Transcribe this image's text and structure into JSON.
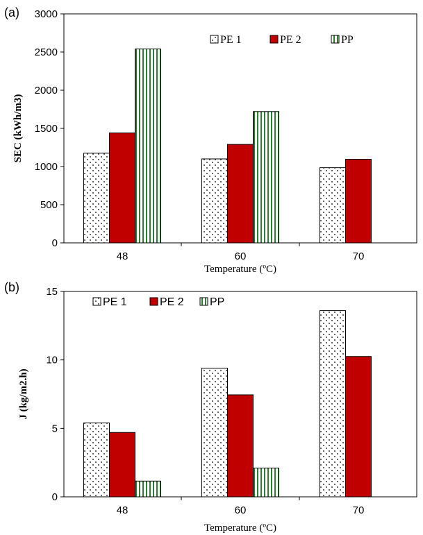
{
  "chart_data": [
    {
      "panel_label": "(a)",
      "type": "bar",
      "categories": [
        "48",
        "60",
        "70"
      ],
      "series": [
        {
          "name": "PE 1",
          "values": [
            1175,
            1100,
            985
          ],
          "fill": "#ffffff",
          "pattern": "dots"
        },
        {
          "name": "PE 2",
          "values": [
            1440,
            1290,
            1095
          ],
          "fill": "#c00000",
          "pattern": "solid"
        },
        {
          "name": "PP",
          "values": [
            2540,
            1720,
            null
          ],
          "fill": "#ffffff",
          "pattern": "vertical-lines",
          "pattern_color": "#2e7d32"
        }
      ],
      "ylabel": "SEC (kWh/m3)",
      "xlabel": "Temperature (ºC)",
      "ylim": [
        0,
        3000
      ],
      "yticks": [
        "0",
        "500",
        "1000",
        "1500",
        "2000",
        "2500",
        "3000"
      ],
      "grid": false,
      "legend": "top-right"
    },
    {
      "panel_label": "(b)",
      "type": "bar",
      "categories": [
        "48",
        "60",
        "70"
      ],
      "series": [
        {
          "name": "PE 1",
          "values": [
            5.4,
            9.4,
            13.6
          ],
          "fill": "#ffffff",
          "pattern": "dots"
        },
        {
          "name": "PE 2",
          "values": [
            4.7,
            7.45,
            10.25
          ],
          "fill": "#c00000",
          "pattern": "solid"
        },
        {
          "name": "PP",
          "values": [
            1.15,
            2.1,
            null
          ],
          "fill": "#ffffff",
          "pattern": "vertical-lines",
          "pattern_color": "#2e7d32"
        }
      ],
      "ylabel": "J (kg/m2.h)",
      "xlabel": "Temperature (ºC)",
      "ylim": [
        0,
        15
      ],
      "yticks": [
        "0",
        "5",
        "10",
        "15"
      ],
      "grid": false,
      "legend": "top-left"
    }
  ]
}
